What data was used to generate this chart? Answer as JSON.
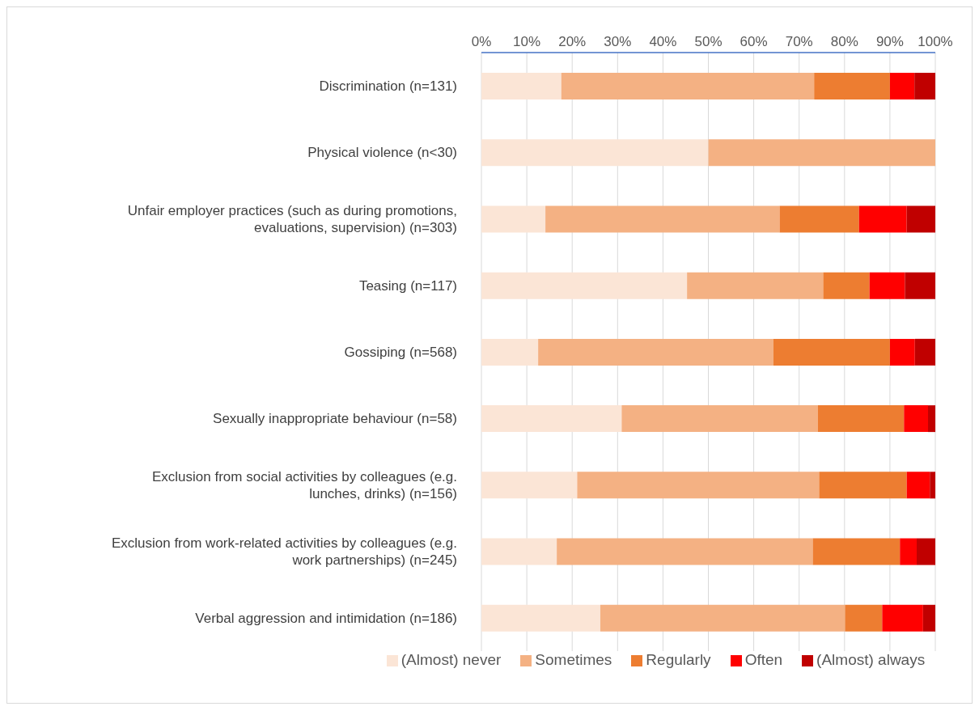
{
  "chart_data": {
    "type": "bar",
    "orientation": "horizontal",
    "stacked": true,
    "categories": [
      "Discrimination (n=131)",
      "Physical violence (n<30)",
      "Unfair employer practices (such as during promotions, evaluations, supervision) (n=303)",
      "Teasing (n=117)",
      "Gossiping (n=568)",
      "Sexually inappropriate behaviour (n=58)",
      "Exclusion from social activities by colleagues (e.g. lunches, drinks) (n=156)",
      "Exclusion from work-related activities by colleagues (e.g. work partnerships) (n=245)",
      "Verbal aggression and intimidation (n=186)"
    ],
    "series": [
      {
        "name": "(Almost) never",
        "color": "#fbe5d6",
        "values": [
          17.6,
          50.0,
          14.1,
          45.3,
          12.5,
          30.9,
          21.1,
          16.6,
          26.2
        ]
      },
      {
        "name": "Sometimes",
        "color": "#f4b183",
        "values": [
          55.7,
          50.0,
          51.6,
          30.0,
          51.8,
          43.2,
          53.3,
          56.4,
          53.9
        ]
      },
      {
        "name": "Regularly",
        "color": "#ed7d31",
        "values": [
          16.7,
          0,
          17.5,
          10.2,
          25.7,
          19.0,
          19.3,
          19.2,
          8.2
        ]
      },
      {
        "name": "Often",
        "color": "#ff0000",
        "values": [
          5.4,
          0,
          10.5,
          7.8,
          5.5,
          5.3,
          5.1,
          3.7,
          9.0
        ]
      },
      {
        "name": "(Almost) always",
        "color": "#c00000",
        "values": [
          4.6,
          0,
          6.3,
          6.7,
          4.5,
          1.6,
          1.2,
          4.1,
          2.7
        ]
      }
    ],
    "xlim": [
      0,
      100
    ],
    "xticks": [
      {
        "value": 0,
        "label": "0%"
      },
      {
        "value": 10,
        "label": "10%"
      },
      {
        "value": 20,
        "label": "20%"
      },
      {
        "value": 30,
        "label": "30%"
      },
      {
        "value": 40,
        "label": "40%"
      },
      {
        "value": 50,
        "label": "50%"
      },
      {
        "value": 60,
        "label": "60%"
      },
      {
        "value": 70,
        "label": "70%"
      },
      {
        "value": 80,
        "label": "80%"
      },
      {
        "value": 90,
        "label": "90%"
      },
      {
        "value": 100,
        "label": "100%"
      }
    ],
    "grid": "x",
    "legend": "bottom"
  }
}
